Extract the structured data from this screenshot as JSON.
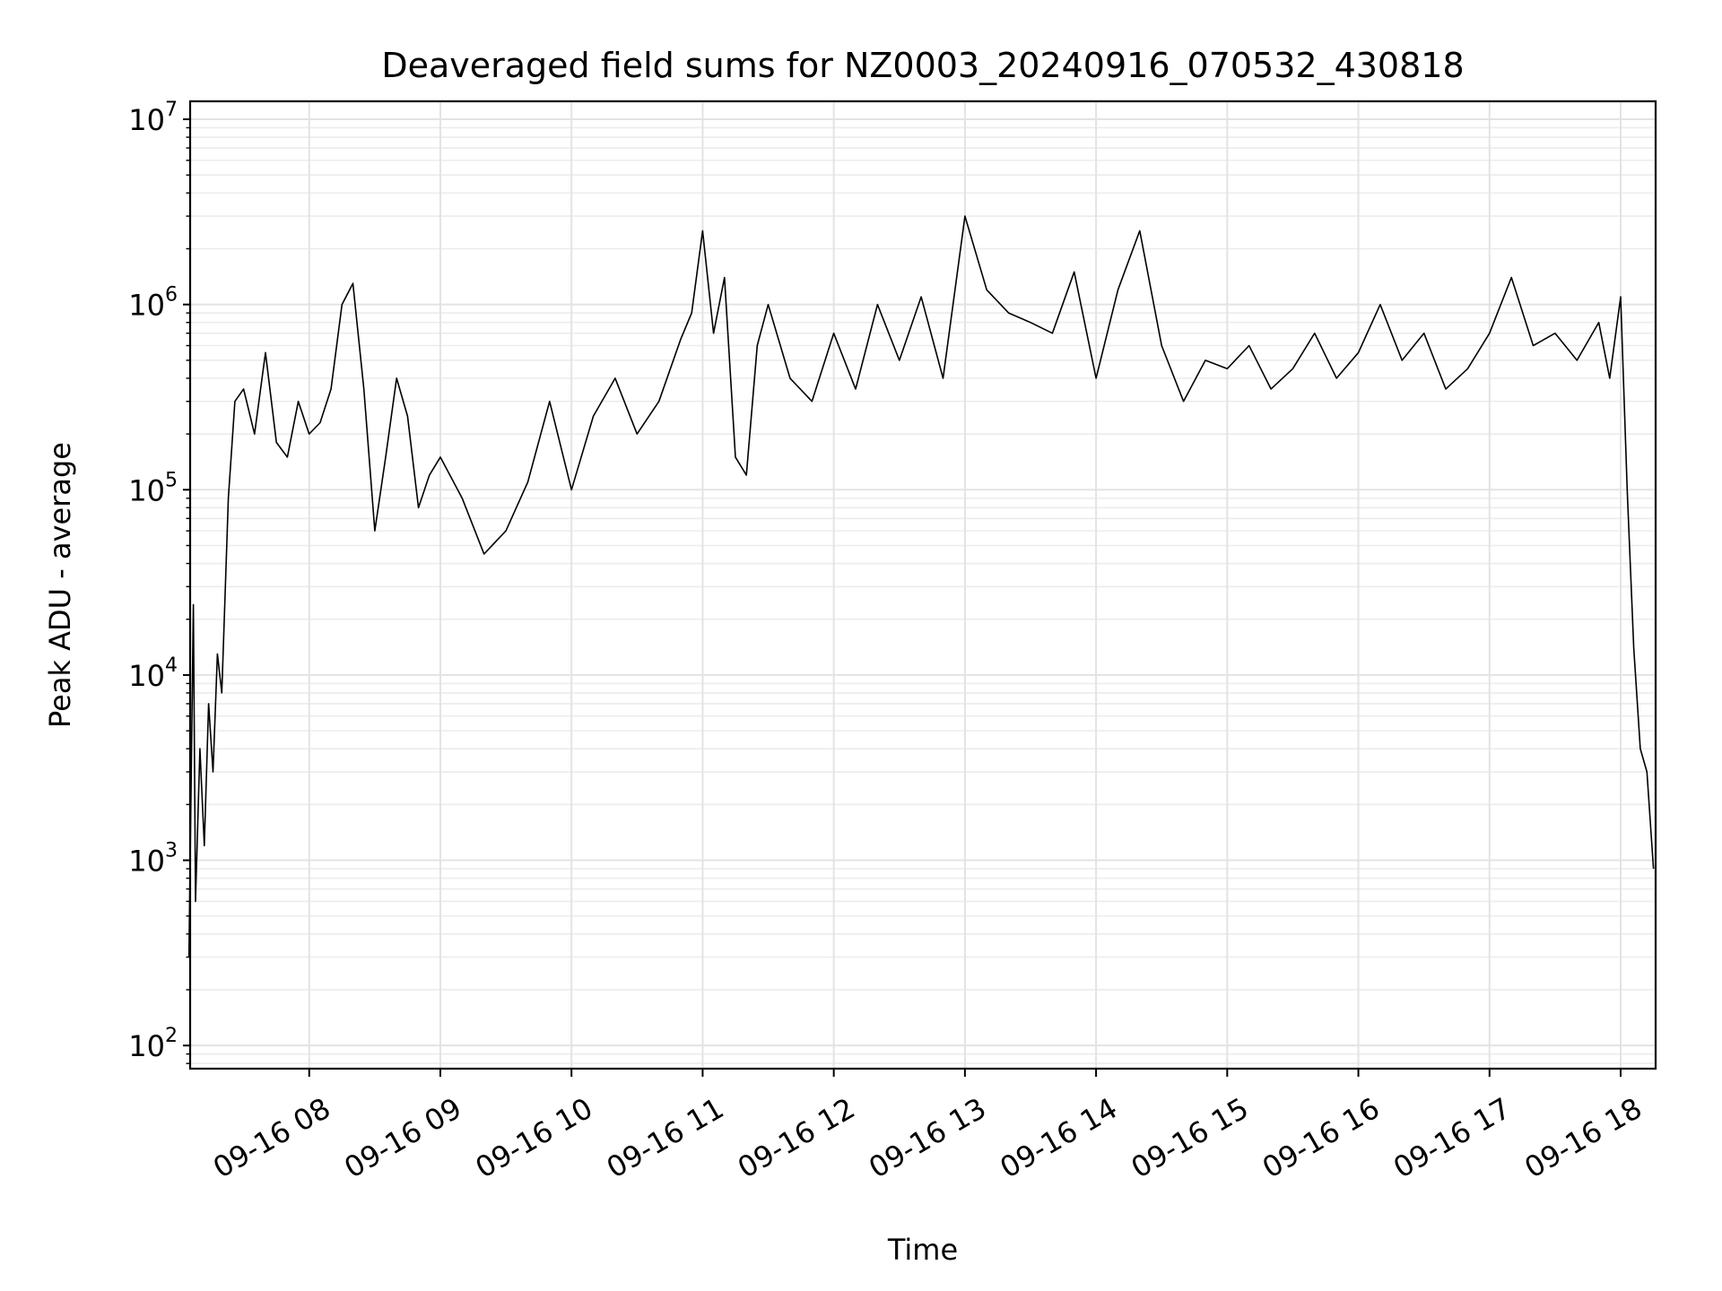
{
  "chart_data": {
    "type": "line",
    "title": "Deaveraged field sums for NZ0003_20240916_070532_430818",
    "xlabel": "Time",
    "ylabel": "Peak ADU - average",
    "yscale": "log",
    "ylim": [
      75,
      12500000
    ],
    "xlim": [
      "2024-09-16 07:05:32",
      "2024-09-16 18:16:00"
    ],
    "grid": true,
    "legend": "none",
    "line_color": "#000000",
    "x_ticks": [
      {
        "x": "2024-09-16 08:00",
        "label": "09-16 08"
      },
      {
        "x": "2024-09-16 09:00",
        "label": "09-16 09"
      },
      {
        "x": "2024-09-16 10:00",
        "label": "09-16 10"
      },
      {
        "x": "2024-09-16 11:00",
        "label": "09-16 11"
      },
      {
        "x": "2024-09-16 12:00",
        "label": "09-16 12"
      },
      {
        "x": "2024-09-16 13:00",
        "label": "09-16 13"
      },
      {
        "x": "2024-09-16 14:00",
        "label": "09-16 14"
      },
      {
        "x": "2024-09-16 15:00",
        "label": "09-16 15"
      },
      {
        "x": "2024-09-16 16:00",
        "label": "09-16 16"
      },
      {
        "x": "2024-09-16 17:00",
        "label": "09-16 17"
      },
      {
        "x": "2024-09-16 18:00",
        "label": "09-16 18"
      }
    ],
    "y_ticks": [
      {
        "y": 100,
        "base": "10",
        "exp": "2"
      },
      {
        "y": 1000,
        "base": "10",
        "exp": "3"
      },
      {
        "y": 10000,
        "base": "10",
        "exp": "4"
      },
      {
        "y": 100000,
        "base": "10",
        "exp": "5"
      },
      {
        "y": 1000000,
        "base": "10",
        "exp": "6"
      },
      {
        "y": 10000000,
        "base": "10",
        "exp": "7"
      }
    ],
    "series": [
      {
        "x": [
          "2024-09-16 07:05",
          "2024-09-16 07:07",
          "2024-09-16 07:08",
          "2024-09-16 07:10",
          "2024-09-16 07:12",
          "2024-09-16 07:14",
          "2024-09-16 07:16",
          "2024-09-16 07:18",
          "2024-09-16 07:20",
          "2024-09-16 07:23",
          "2024-09-16 07:26",
          "2024-09-16 07:30",
          "2024-09-16 07:35",
          "2024-09-16 07:40",
          "2024-09-16 07:45",
          "2024-09-16 07:50",
          "2024-09-16 07:55",
          "2024-09-16 08:00",
          "2024-09-16 08:05",
          "2024-09-16 08:10",
          "2024-09-16 08:15",
          "2024-09-16 08:20",
          "2024-09-16 08:25",
          "2024-09-16 08:30",
          "2024-09-16 08:35",
          "2024-09-16 08:40",
          "2024-09-16 08:45",
          "2024-09-16 08:50",
          "2024-09-16 08:55",
          "2024-09-16 09:00",
          "2024-09-16 09:10",
          "2024-09-16 09:20",
          "2024-09-16 09:30",
          "2024-09-16 09:40",
          "2024-09-16 09:50",
          "2024-09-16 10:00",
          "2024-09-16 10:10",
          "2024-09-16 10:20",
          "2024-09-16 10:30",
          "2024-09-16 10:40",
          "2024-09-16 10:50",
          "2024-09-16 10:55",
          "2024-09-16 11:00",
          "2024-09-16 11:05",
          "2024-09-16 11:10",
          "2024-09-16 11:15",
          "2024-09-16 11:20",
          "2024-09-16 11:25",
          "2024-09-16 11:30",
          "2024-09-16 11:40",
          "2024-09-16 11:50",
          "2024-09-16 12:00",
          "2024-09-16 12:10",
          "2024-09-16 12:20",
          "2024-09-16 12:30",
          "2024-09-16 12:40",
          "2024-09-16 12:50",
          "2024-09-16 13:00",
          "2024-09-16 13:10",
          "2024-09-16 13:20",
          "2024-09-16 13:30",
          "2024-09-16 13:40",
          "2024-09-16 13:50",
          "2024-09-16 14:00",
          "2024-09-16 14:10",
          "2024-09-16 14:20",
          "2024-09-16 14:30",
          "2024-09-16 14:40",
          "2024-09-16 14:50",
          "2024-09-16 15:00",
          "2024-09-16 15:10",
          "2024-09-16 15:20",
          "2024-09-16 15:30",
          "2024-09-16 15:40",
          "2024-09-16 15:50",
          "2024-09-16 16:00",
          "2024-09-16 16:10",
          "2024-09-16 16:20",
          "2024-09-16 16:30",
          "2024-09-16 16:40",
          "2024-09-16 16:50",
          "2024-09-16 17:00",
          "2024-09-16 17:10",
          "2024-09-16 17:20",
          "2024-09-16 17:30",
          "2024-09-16 17:40",
          "2024-09-16 17:50",
          "2024-09-16 17:55",
          "2024-09-16 18:00",
          "2024-09-16 18:03",
          "2024-09-16 18:06",
          "2024-09-16 18:09",
          "2024-09-16 18:12",
          "2024-09-16 18:15"
        ],
        "y": [
          300,
          24000,
          600,
          4000,
          1200,
          7000,
          3000,
          13000,
          8000,
          90000,
          300000,
          350000,
          200000,
          550000,
          180000,
          150000,
          300000,
          200000,
          230000,
          350000,
          1000000,
          1300000,
          350000,
          60000,
          150000,
          400000,
          250000,
          80000,
          120000,
          150000,
          90000,
          45000,
          60000,
          110000,
          300000,
          100000,
          250000,
          400000,
          200000,
          300000,
          650000,
          900000,
          2500000,
          700000,
          1400000,
          150000,
          120000,
          600000,
          1000000,
          400000,
          300000,
          700000,
          350000,
          1000000,
          500000,
          1100000,
          400000,
          3000000,
          1200000,
          900000,
          800000,
          700000,
          1500000,
          400000,
          1200000,
          2500000,
          600000,
          300000,
          500000,
          450000,
          600000,
          350000,
          450000,
          700000,
          400000,
          550000,
          1000000,
          500000,
          700000,
          350000,
          450000,
          700000,
          1400000,
          600000,
          700000,
          500000,
          800000,
          400000,
          1100000,
          100000,
          14000,
          4000,
          3000,
          900
        ]
      }
    ]
  }
}
